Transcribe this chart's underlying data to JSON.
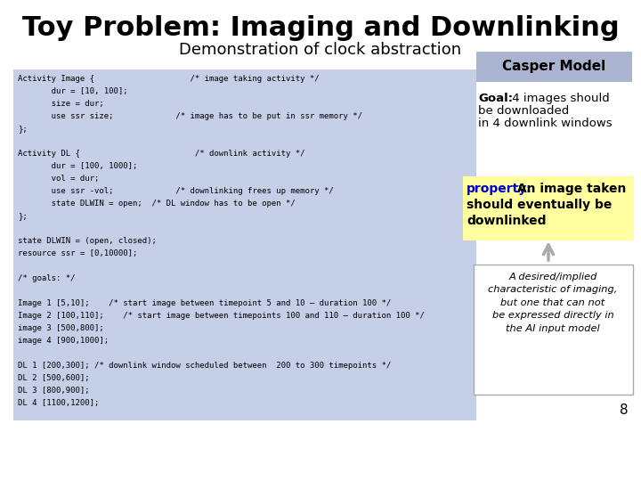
{
  "title": "Toy Problem: Imaging and Downlinking",
  "subtitle": "Demonstration of clock abstraction",
  "title_fontsize": 22,
  "subtitle_fontsize": 13,
  "background_color": "#ffffff",
  "code_bg": "#c5cfe8",
  "code_lines": [
    "Activity Image {                    /* image taking activity */",
    "       dur = [10, 100];",
    "       size = dur;",
    "       use ssr size;             /* image has to be put in ssr memory */",
    "};",
    "",
    "Activity DL {                        /* downlink activity */",
    "       dur = [100, 1000];",
    "       vol = dur;",
    "       use ssr -vol;             /* downlinking frees up memory */",
    "       state DLWIN = open;  /* DL window has to be open */",
    "};",
    "",
    "state DLWIN = (open, closed);",
    "resource ssr = [0,10000];",
    "",
    "/* goals: */",
    "",
    "Image 1 [5,10];    /* start image between timepoint 5 and 10 – duration 100 */",
    "Image 2 [100,110];    /* start image between timepoints 100 and 110 – duration 100 */",
    "image 3 [500,800];",
    "image 4 [900,1000];",
    "",
    "DL 1 [200,300]; /* downlink window scheduled between  200 to 300 timepoints */",
    "DL 2 [500,600];",
    "DL 3 [800,900];",
    "DL 4 [1100,1200];"
  ],
  "casper_label": "Casper Model",
  "casper_bg": "#aab4d0",
  "goal_line1": "Goal:",
  "goal_line2": " 4 images should",
  "goal_line3": "be downloaded",
  "goal_line4": "in 4 downlink windows",
  "property_bg": "#ffffa0",
  "property_word": "property:",
  "property_rest1": " An image taken",
  "property_rest2": "should eventually be",
  "property_rest3": "downlinked",
  "implied_text": "A desired/implied\ncharacteristic of imaging,\nbut one that can not\nbe expressed directly in\nthe AI input model",
  "implied_bg": "#ffffff",
  "implied_border": "#aaaaaa",
  "arrow_color": "#aaaaaa",
  "page_number": "8",
  "code_fontsize": 6.5
}
